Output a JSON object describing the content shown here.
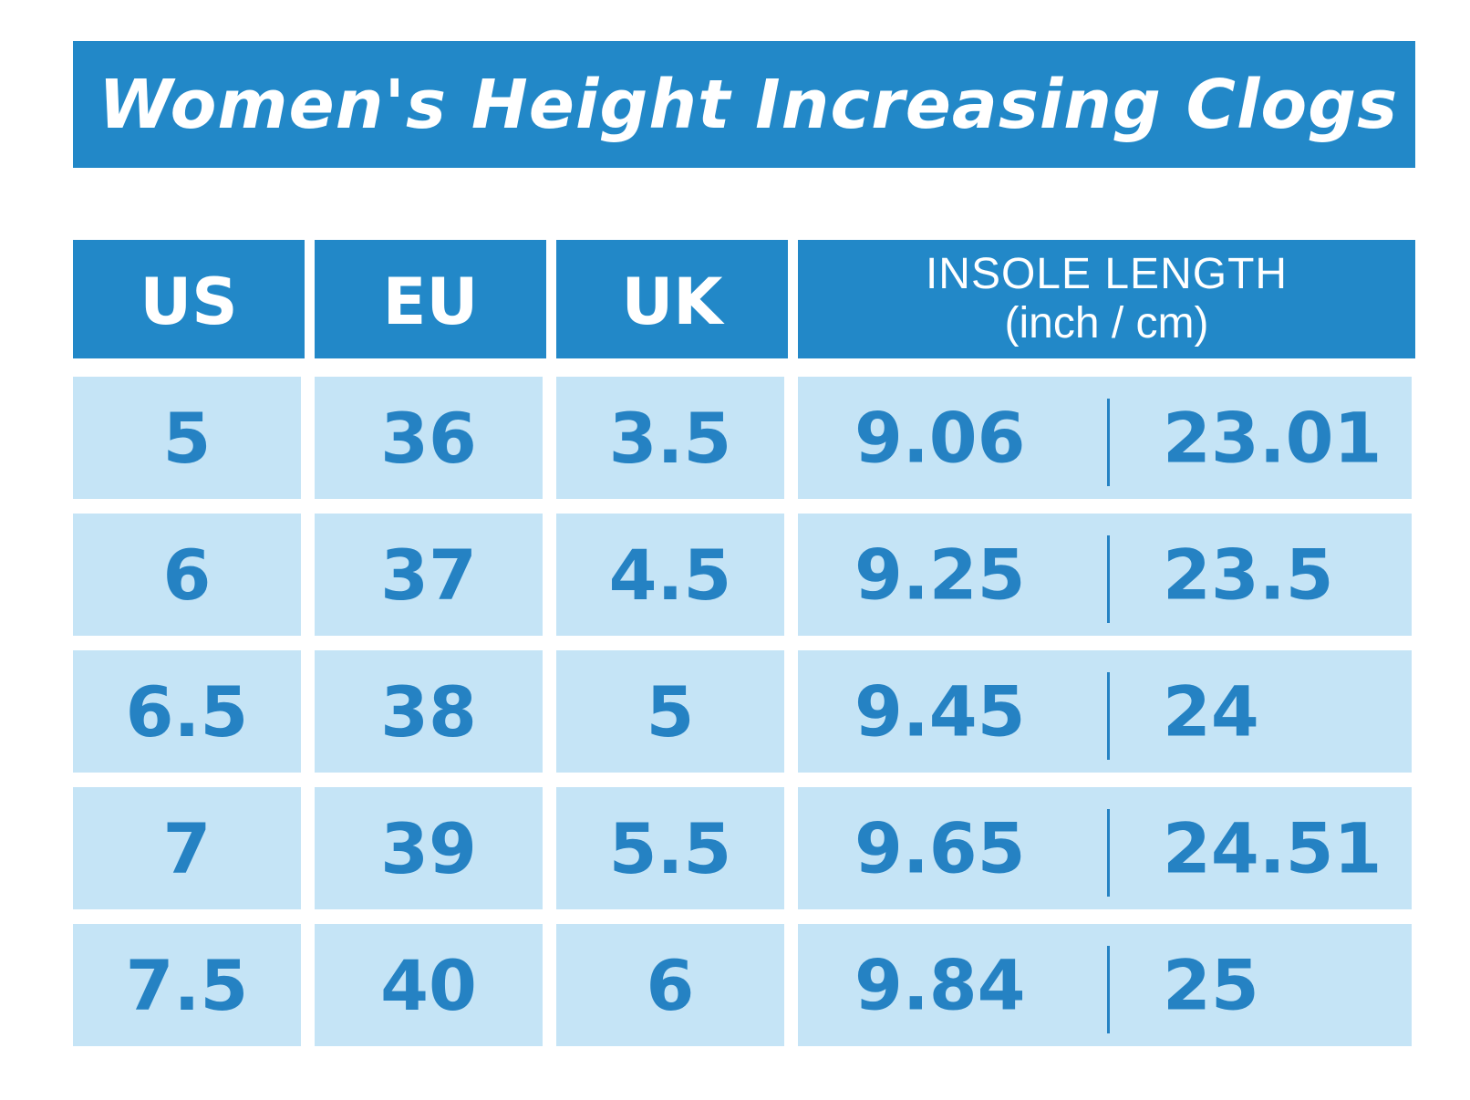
{
  "title": "Women's Height Increasing Clogs",
  "headers": {
    "us": "US",
    "eu": "EU",
    "uk": "UK",
    "insole_line1": "INSOLE LENGTH",
    "insole_line2": "(inch / cm)"
  },
  "rows": [
    {
      "us": "5",
      "eu": "36",
      "uk": "3.5",
      "inch": "9.06",
      "cm": "23.01"
    },
    {
      "us": "6",
      "eu": "37",
      "uk": "4.5",
      "inch": "9.25",
      "cm": "23.5"
    },
    {
      "us": "6.5",
      "eu": "38",
      "uk": "5",
      "inch": "9.45",
      "cm": "24"
    },
    {
      "us": "7",
      "eu": "39",
      "uk": "5.5",
      "inch": "9.65",
      "cm": "24.51"
    },
    {
      "us": "7.5",
      "eu": "40",
      "uk": "6",
      "inch": "9.84",
      "cm": "25"
    }
  ],
  "colors": {
    "header_blue": "#2288c8",
    "cell_light_blue": "#c5e4f6",
    "value_text_blue": "#2582c3"
  }
}
